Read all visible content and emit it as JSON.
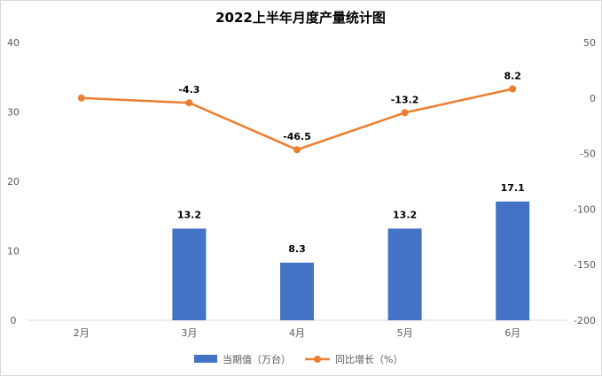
{
  "chart_data": {
    "type": "bar+line",
    "title": "2022上半年月度产量统计图",
    "categories": [
      "2月",
      "3月",
      "4月",
      "5月",
      "6月"
    ],
    "series": [
      {
        "name": "当期值（万台）",
        "type": "bar",
        "axis": "left",
        "values": [
          null,
          13.2,
          8.3,
          13.2,
          17.1
        ],
        "labels": [
          "",
          "13.2",
          "8.3",
          "13.2",
          "17.1"
        ]
      },
      {
        "name": "同比增长（%）",
        "type": "line",
        "axis": "right",
        "values": [
          0,
          -4.3,
          -46.5,
          -13.2,
          8.2
        ],
        "labels": [
          "",
          "-4.3",
          "-46.5",
          "-13.2",
          "8.2"
        ]
      }
    ],
    "y_left": {
      "min": 0,
      "max": 40,
      "ticks": [
        "0",
        "10",
        "20",
        "30",
        "40"
      ]
    },
    "y_right": {
      "min": -200,
      "max": 50,
      "ticks": [
        "-200",
        "-150",
        "-100",
        "-50",
        "0",
        "50"
      ]
    },
    "legend_position": "bottom",
    "colors": {
      "bar": "#4472C4",
      "line": "#ED7D31"
    }
  }
}
